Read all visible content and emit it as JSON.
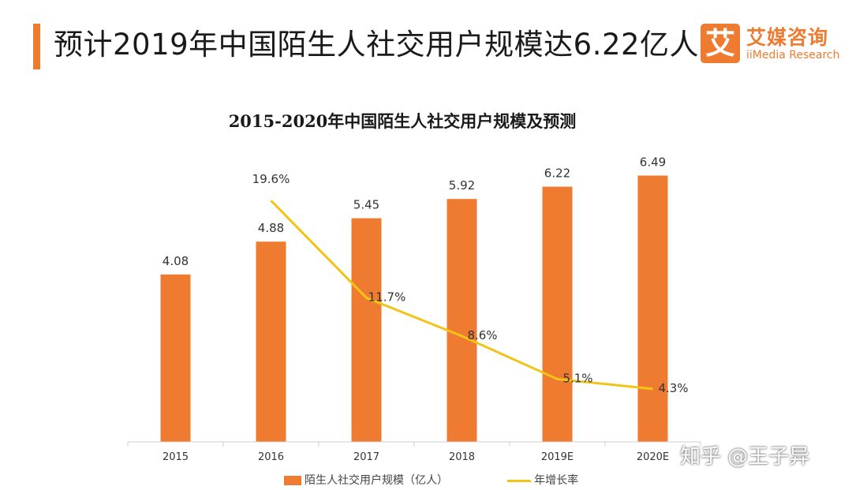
{
  "header": {
    "headline": "预计2019年中国陌生人社交用户规模达6.22亿人",
    "accent_color": "#ee7b30"
  },
  "logo": {
    "mark": "艾",
    "name_cn": "艾媒咨询",
    "name_en": "iiMedia Research"
  },
  "watermark": "知乎 @王子异",
  "chart_data": {
    "type": "bar",
    "title": "2015-2020年中国陌生人社交用户规模及预测",
    "categories": [
      "2015",
      "2016",
      "2017",
      "2018",
      "2019E",
      "2020E"
    ],
    "series": [
      {
        "name": "陌生人社交用户规模（亿人）",
        "type": "bar",
        "color": "#ee7b30",
        "values": [
          4.08,
          4.88,
          5.45,
          5.92,
          6.22,
          6.49
        ],
        "labels": [
          "4.08",
          "4.88",
          "5.45",
          "5.92",
          "6.22",
          "6.49"
        ]
      },
      {
        "name": "年增长率",
        "type": "line",
        "color": "#f2c418",
        "values": [
          null,
          19.6,
          11.7,
          8.6,
          5.1,
          4.3
        ],
        "labels": [
          "",
          "19.6%",
          "11.7%",
          "8.6%",
          "5.1%",
          "4.3%"
        ]
      }
    ],
    "ylim": [
      0,
      7.5
    ],
    "y2lim": [
      0,
      25
    ],
    "grid": false,
    "legend": "bottom"
  }
}
